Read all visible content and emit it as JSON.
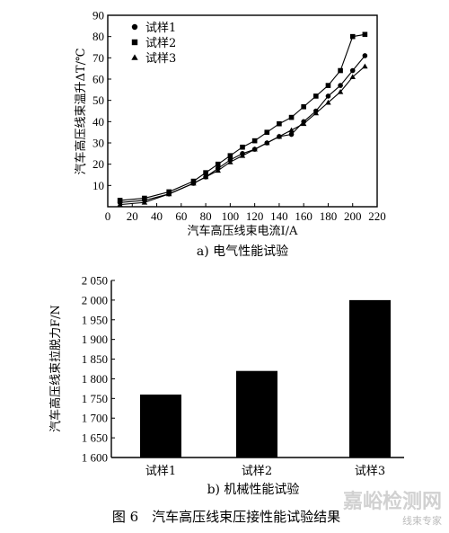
{
  "chart_data": [
    {
      "type": "line",
      "xlabel": "汽车高压线束电流I/A",
      "ylabel": "汽车高压线束温升ΔT/℃",
      "xlim": [
        0,
        220
      ],
      "ylim": [
        0,
        90
      ],
      "xticks": [
        0,
        20,
        40,
        60,
        80,
        100,
        120,
        140,
        160,
        180,
        200,
        220
      ],
      "yticks": [
        10,
        20,
        30,
        40,
        50,
        60,
        70,
        80,
        90
      ],
      "caption": "a) 电气性能试验",
      "legend_position": "top-left",
      "grid": false,
      "x": [
        10,
        30,
        50,
        70,
        80,
        90,
        100,
        110,
        120,
        130,
        140,
        150,
        160,
        170,
        180,
        190,
        200,
        210
      ],
      "series": [
        {
          "name": "试样1",
          "marker": "circle",
          "values": [
            2,
            3,
            6,
            11,
            14,
            18,
            22,
            25,
            27,
            30,
            33,
            34,
            40,
            45,
            52,
            57,
            64,
            71
          ]
        },
        {
          "name": "试样2",
          "marker": "square",
          "values": [
            3,
            4,
            7,
            12,
            16,
            20,
            24,
            28,
            31,
            35,
            39,
            42,
            47,
            52,
            57,
            64,
            80,
            81
          ]
        },
        {
          "name": "试样3",
          "marker": "triangle",
          "values": [
            1,
            2,
            6,
            11,
            14,
            17,
            21,
            24,
            27,
            30,
            33,
            36,
            39,
            44,
            49,
            54,
            61,
            66
          ]
        }
      ]
    },
    {
      "type": "bar",
      "categories": [
        "试样1",
        "试样2",
        "试样3"
      ],
      "values": [
        1760,
        1820,
        2000
      ],
      "ylabel": "汽车高压线束拉脱力F/N",
      "ylim": [
        1600,
        2050
      ],
      "yticks": [
        "1 600",
        "1 650",
        "1 700",
        "1 750",
        "1 800",
        "1 850",
        "1 900",
        "1 950",
        "2 000",
        "2 050"
      ],
      "caption": "b) 机械性能试验",
      "bar_color": "#000000",
      "grid": false
    }
  ],
  "figure_caption": "图 6　汽车高压线束压接性能试验结果",
  "watermark": {
    "text1": "嘉峪检测网",
    "text2": "线束专家",
    "color": "#c9c9c9"
  }
}
